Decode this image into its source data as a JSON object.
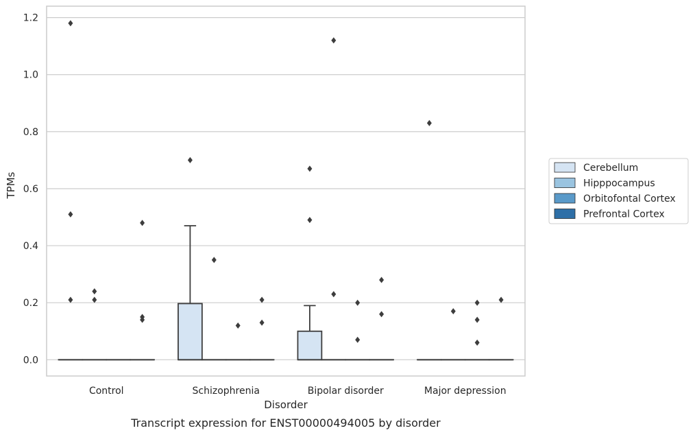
{
  "caption": "Transcript expression for ENST00000494005 by disorder",
  "chart_data": {
    "type": "box",
    "xlabel": "Disorder",
    "ylabel": "TPMs",
    "ylim": [
      -0.057,
      1.24
    ],
    "yticks": [
      0.0,
      0.2,
      0.4,
      0.6,
      0.8,
      1.0,
      1.2
    ],
    "ytick_labels": [
      "0.0",
      "0.2",
      "0.4",
      "0.6",
      "0.8",
      "1.0",
      "1.2"
    ],
    "grid": "horizontal",
    "legend_position": "right",
    "categories": [
      "Control",
      "Schizophrenia",
      "Bipolar disorder",
      "Major depression"
    ],
    "series": [
      {
        "name": "Cerebellum",
        "color": "#d5e4f3",
        "boxes": [
          {
            "q1": 0,
            "median": 0,
            "q3": 0,
            "whislo": 0,
            "whishi": 0,
            "fliers": [
              1.18,
              0.51,
              0.21
            ]
          },
          {
            "q1": 0,
            "median": 0,
            "q3": 0.197,
            "whislo": 0,
            "whishi": 0.47,
            "fliers": [
              0.7
            ]
          },
          {
            "q1": 0,
            "median": 0,
            "q3": 0.1,
            "whislo": 0,
            "whishi": 0.19,
            "fliers": [
              0.67,
              0.49
            ]
          },
          {
            "q1": 0,
            "median": 0,
            "q3": 0,
            "whislo": 0,
            "whishi": 0,
            "fliers": [
              0.83
            ]
          }
        ]
      },
      {
        "name": "Hipppocampus",
        "color": "#9ac4e0",
        "boxes": [
          {
            "q1": 0,
            "median": 0,
            "q3": 0,
            "whislo": 0,
            "whishi": 0,
            "fliers": [
              0.24,
              0.21
            ]
          },
          {
            "q1": 0,
            "median": 0,
            "q3": 0,
            "whislo": 0,
            "whishi": 0,
            "fliers": [
              0.35
            ]
          },
          {
            "q1": 0,
            "median": 0,
            "q3": 0,
            "whislo": 0,
            "whishi": 0,
            "fliers": [
              1.12,
              0.23
            ]
          },
          {
            "q1": 0,
            "median": 0,
            "q3": 0,
            "whislo": 0,
            "whishi": 0,
            "fliers": [
              0.17
            ]
          }
        ]
      },
      {
        "name": "Orbitofontal Cortex",
        "color": "#5a9ac9",
        "boxes": [
          {
            "q1": 0,
            "median": 0,
            "q3": 0,
            "whislo": 0,
            "whishi": 0,
            "fliers": []
          },
          {
            "q1": 0,
            "median": 0,
            "q3": 0,
            "whislo": 0,
            "whishi": 0,
            "fliers": [
              0.12
            ]
          },
          {
            "q1": 0,
            "median": 0,
            "q3": 0,
            "whislo": 0,
            "whishi": 0,
            "fliers": [
              0.2,
              0.07
            ]
          },
          {
            "q1": 0,
            "median": 0,
            "q3": 0,
            "whislo": 0,
            "whishi": 0,
            "fliers": [
              0.2,
              0.14,
              0.06
            ]
          }
        ]
      },
      {
        "name": "Prefrontal Cortex",
        "color": "#2e6fa7",
        "boxes": [
          {
            "q1": 0,
            "median": 0,
            "q3": 0,
            "whislo": 0,
            "whishi": 0,
            "fliers": [
              0.48,
              0.15,
              0.14
            ]
          },
          {
            "q1": 0,
            "median": 0,
            "q3": 0,
            "whislo": 0,
            "whishi": 0,
            "fliers": [
              0.21,
              0.13
            ]
          },
          {
            "q1": 0,
            "median": 0,
            "q3": 0,
            "whislo": 0,
            "whishi": 0,
            "fliers": [
              0.28,
              0.16
            ]
          },
          {
            "q1": 0,
            "median": 0,
            "q3": 0,
            "whislo": 0,
            "whishi": 0,
            "fliers": [
              0.21
            ]
          }
        ]
      }
    ]
  }
}
